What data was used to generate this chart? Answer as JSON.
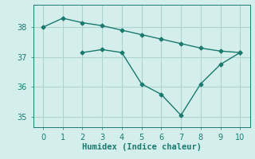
{
  "line1_x": [
    0,
    1,
    2,
    3,
    4,
    5,
    6,
    7,
    8,
    9,
    10
  ],
  "line1_y": [
    38.0,
    38.3,
    38.15,
    38.05,
    37.9,
    37.75,
    37.6,
    37.45,
    37.3,
    37.2,
    37.15
  ],
  "line2_x": [
    2,
    3,
    4,
    5,
    6,
    7,
    8,
    9,
    10
  ],
  "line2_y": [
    37.15,
    37.25,
    37.15,
    36.1,
    35.75,
    35.05,
    36.1,
    36.75,
    37.15
  ],
  "line_color": "#1a7a6e",
  "marker": "D",
  "marker_size": 2.5,
  "xlabel": "Humidex (Indice chaleur)",
  "xlim": [
    -0.5,
    10.5
  ],
  "ylim": [
    34.65,
    38.75
  ],
  "yticks": [
    35,
    36,
    37,
    38
  ],
  "xticks": [
    0,
    1,
    2,
    3,
    4,
    5,
    6,
    7,
    8,
    9,
    10
  ],
  "bg_color": "#d4eeeb",
  "grid_color": "#aed4d0",
  "tick_color": "#1a7a6e",
  "label_fontsize": 7.5,
  "tick_fontsize": 7
}
